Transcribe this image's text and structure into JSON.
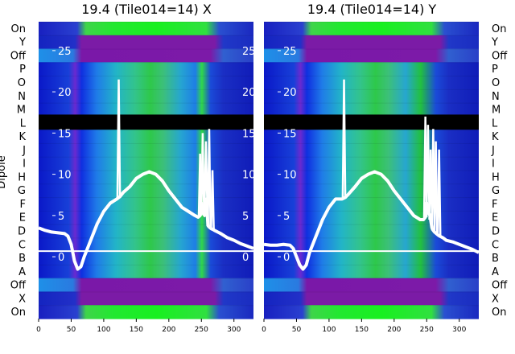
{
  "chart_data": [
    {
      "type": "heatmap",
      "title": "19.4 (Tile014=14) X",
      "ylabel": "Dipole",
      "row_labels_top_to_bottom": [
        "On",
        "Y",
        "Off",
        "P",
        "O",
        "N",
        "M",
        "L",
        "K",
        "J",
        "I",
        "H",
        "G",
        "F",
        "E",
        "D",
        "C",
        "B",
        "A",
        "Off",
        "X",
        "On"
      ],
      "xlim": [
        0,
        330
      ],
      "xticks": [
        0,
        50,
        100,
        150,
        200,
        250,
        300
      ],
      "ylim": [
        -7.5,
        28.5
      ],
      "yticks": [
        0,
        5,
        10,
        15,
        20,
        25
      ],
      "line_color": "#ffffff",
      "line": {
        "x": [
          0,
          10,
          20,
          30,
          40,
          45,
          50,
          55,
          60,
          65,
          70,
          80,
          90,
          100,
          110,
          120,
          125,
          130,
          140,
          150,
          160,
          170,
          180,
          190,
          200,
          210,
          220,
          230,
          240,
          245,
          248,
          250,
          252,
          255,
          258,
          260,
          262,
          265,
          268,
          270,
          275,
          280,
          290,
          300,
          310,
          320,
          330
        ],
        "y": [
          3.5,
          3.2,
          3.0,
          2.9,
          2.8,
          2.5,
          1.5,
          -0.5,
          -1.5,
          -1.2,
          0.0,
          2.0,
          4.0,
          5.5,
          6.5,
          7.0,
          7.3,
          7.8,
          8.5,
          9.5,
          10.0,
          10.3,
          10.0,
          9.2,
          8.0,
          7.0,
          6.0,
          5.5,
          5.0,
          4.8,
          5.0,
          6.5,
          5.5,
          5.0,
          7.0,
          3.8,
          3.6,
          3.4,
          3.3,
          3.2,
          3.0,
          2.8,
          2.3,
          2.0,
          1.6,
          1.3,
          1.0
        ]
      },
      "spikes": [
        {
          "x": 123,
          "peak": 21.5
        },
        {
          "x": 248,
          "peak": 12.5
        },
        {
          "x": 252,
          "peak": 15.0
        },
        {
          "x": 257,
          "peak": 14.0
        },
        {
          "x": 262,
          "peak": 15.5
        },
        {
          "x": 267,
          "peak": 10.5
        }
      ]
    },
    {
      "type": "heatmap",
      "title": "19.4 (Tile014=14) Y",
      "ylabel": "",
      "row_labels_top_to_bottom": [
        "On",
        "Y",
        "Off",
        "P",
        "O",
        "N",
        "M",
        "L",
        "K",
        "J",
        "I",
        "H",
        "G",
        "F",
        "E",
        "D",
        "C",
        "B",
        "A",
        "Off",
        "X",
        "On"
      ],
      "xlim": [
        0,
        330
      ],
      "xticks": [
        0,
        50,
        100,
        150,
        200,
        250,
        300
      ],
      "ylim": [
        -7.5,
        28.5
      ],
      "yticks": [
        0,
        5,
        10,
        15,
        20,
        25
      ],
      "line_color": "#ffffff",
      "line": {
        "x": [
          0,
          10,
          20,
          30,
          40,
          45,
          50,
          55,
          60,
          65,
          70,
          80,
          90,
          100,
          110,
          120,
          125,
          130,
          140,
          150,
          160,
          170,
          180,
          190,
          200,
          210,
          220,
          230,
          240,
          245,
          248,
          250,
          252,
          255,
          258,
          260,
          262,
          265,
          268,
          270,
          275,
          280,
          290,
          300,
          310,
          320,
          330
        ],
        "y": [
          1.5,
          1.4,
          1.4,
          1.5,
          1.4,
          1.0,
          0.0,
          -1.0,
          -1.5,
          -1.0,
          0.5,
          2.5,
          4.5,
          6.0,
          7.0,
          7.0,
          7.2,
          7.6,
          8.5,
          9.5,
          10.0,
          10.3,
          10.0,
          9.2,
          8.0,
          7.0,
          6.0,
          5.0,
          4.5,
          4.5,
          4.8,
          6.5,
          5.5,
          5.0,
          3.5,
          3.2,
          3.0,
          2.8,
          2.6,
          2.5,
          2.3,
          2.0,
          1.8,
          1.5,
          1.2,
          0.9,
          0.5
        ]
      },
      "spikes": [
        {
          "x": 123,
          "peak": 21.5
        },
        {
          "x": 248,
          "peak": 17.0
        },
        {
          "x": 252,
          "peak": 16.0
        },
        {
          "x": 256,
          "peak": 13.0
        },
        {
          "x": 260,
          "peak": 15.5
        },
        {
          "x": 264,
          "peak": 14.0
        },
        {
          "x": 269,
          "peak": 13.0
        }
      ]
    }
  ]
}
